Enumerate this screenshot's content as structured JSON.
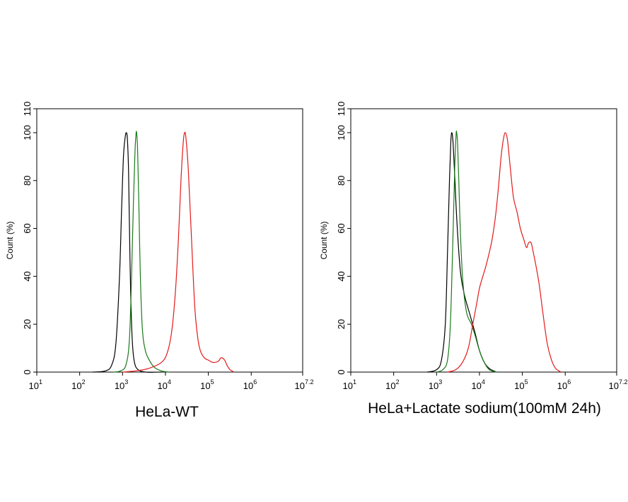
{
  "chart_data": [
    {
      "type": "line",
      "title": "HeLa-WT",
      "xlabel": "",
      "ylabel": "Count  (%)",
      "x_scale": "log10",
      "xlim": [
        10,
        15848931.92
      ],
      "ylim": [
        0,
        110
      ],
      "x_ticks": [
        {
          "base": "10",
          "exp": "1"
        },
        {
          "base": "10",
          "exp": "2"
        },
        {
          "base": "10",
          "exp": "3"
        },
        {
          "base": "10",
          "exp": "4"
        },
        {
          "base": "10",
          "exp": "5"
        },
        {
          "base": "10",
          "exp": "6"
        },
        {
          "base": "10",
          "exp": "7.2"
        }
      ],
      "y_ticks": [
        "0",
        "20",
        "40",
        "60",
        "80",
        "100",
        "110"
      ],
      "grid": false,
      "series": [
        {
          "color": "#000000",
          "points": [
            [
              200,
              0
            ],
            [
              400,
              0.5
            ],
            [
              560,
              3
            ],
            [
              700,
              12
            ],
            [
              850,
              40
            ],
            [
              950,
              68
            ],
            [
              1050,
              90
            ],
            [
              1150,
              98
            ],
            [
              1230,
              100
            ],
            [
              1300,
              97
            ],
            [
              1380,
              84
            ],
            [
              1450,
              60
            ],
            [
              1550,
              32
            ],
            [
              1700,
              12
            ],
            [
              1900,
              4
            ],
            [
              2300,
              1
            ],
            [
              3500,
              0
            ],
            [
              8000,
              0
            ]
          ]
        },
        {
          "color": "#1a7a1a",
          "points": [
            [
              600,
              0
            ],
            [
              900,
              0.5
            ],
            [
              1200,
              3
            ],
            [
              1450,
              14
            ],
            [
              1650,
              45
            ],
            [
              1800,
              72
            ],
            [
              1950,
              92
            ],
            [
              2050,
              99
            ],
            [
              2130,
              100
            ],
            [
              2250,
              92
            ],
            [
              2400,
              70
            ],
            [
              2600,
              40
            ],
            [
              2900,
              18
            ],
            [
              3400,
              9
            ],
            [
              4200,
              5
            ],
            [
              5500,
              2
            ],
            [
              8000,
              0.5
            ],
            [
              12000,
              0
            ]
          ]
        },
        {
          "color": "#e41a1a",
          "points": [
            [
              1000,
              0
            ],
            [
              2000,
              0.5
            ],
            [
              4000,
              1.5
            ],
            [
              8000,
              4
            ],
            [
              11000,
              8
            ],
            [
              14000,
              17
            ],
            [
              17000,
              33
            ],
            [
              20000,
              55
            ],
            [
              23000,
              80
            ],
            [
              26000,
              96
            ],
            [
              28000,
              100
            ],
            [
              30000,
              98
            ],
            [
              34000,
              85
            ],
            [
              40000,
              58
            ],
            [
              48000,
              28
            ],
            [
              56000,
              15
            ],
            [
              65000,
              9
            ],
            [
              80000,
              6
            ],
            [
              100000,
              5
            ],
            [
              130000,
              4
            ],
            [
              170000,
              4.5
            ],
            [
              200000,
              6
            ],
            [
              240000,
              5
            ],
            [
              270000,
              3
            ],
            [
              320000,
              1
            ],
            [
              400000,
              0
            ]
          ]
        }
      ]
    },
    {
      "type": "line",
      "title": "HeLa+Lactate sodium(100mM 24h)",
      "xlabel": "",
      "ylabel": "Count  (%)",
      "x_scale": "log10",
      "xlim": [
        10,
        15848931.92
      ],
      "ylim": [
        0,
        110
      ],
      "x_ticks": [
        {
          "base": "10",
          "exp": "1"
        },
        {
          "base": "10",
          "exp": "2"
        },
        {
          "base": "10",
          "exp": "3"
        },
        {
          "base": "10",
          "exp": "4"
        },
        {
          "base": "10",
          "exp": "5"
        },
        {
          "base": "10",
          "exp": "6"
        },
        {
          "base": "10",
          "exp": "7.2"
        }
      ],
      "y_ticks": [
        "0",
        "20",
        "40",
        "60",
        "80",
        "100",
        "110"
      ],
      "grid": false,
      "series": [
        {
          "color": "#000000",
          "points": [
            [
              600,
              0
            ],
            [
              1000,
              1
            ],
            [
              1300,
              5
            ],
            [
              1600,
              20
            ],
            [
              1800,
              50
            ],
            [
              2000,
              80
            ],
            [
              2150,
              96
            ],
            [
              2250,
              100
            ],
            [
              2400,
              97
            ],
            [
              2600,
              85
            ],
            [
              3000,
              62
            ],
            [
              3600,
              42
            ],
            [
              4500,
              32
            ],
            [
              6000,
              24
            ],
            [
              8000,
              16
            ],
            [
              10000,
              9
            ],
            [
              13000,
              4
            ],
            [
              17000,
              1.5
            ],
            [
              25000,
              0
            ]
          ]
        },
        {
          "color": "#1a7a1a",
          "points": [
            [
              1000,
              0
            ],
            [
              1400,
              1
            ],
            [
              1800,
              5
            ],
            [
              2100,
              20
            ],
            [
              2400,
              55
            ],
            [
              2650,
              85
            ],
            [
              2850,
              99
            ],
            [
              2950,
              100
            ],
            [
              3100,
              95
            ],
            [
              3300,
              80
            ],
            [
              3600,
              58
            ],
            [
              4100,
              38
            ],
            [
              5000,
              25
            ],
            [
              6500,
              20
            ],
            [
              8000,
              15
            ],
            [
              10000,
              9
            ],
            [
              13000,
              4
            ],
            [
              17000,
              1
            ],
            [
              25000,
              0
            ]
          ]
        },
        {
          "color": "#e41a1a",
          "points": [
            [
              1800,
              0
            ],
            [
              2800,
              1
            ],
            [
              4000,
              4
            ],
            [
              5500,
              10
            ],
            [
              7000,
              20
            ],
            [
              8500,
              28
            ],
            [
              10000,
              35
            ],
            [
              12000,
              40
            ],
            [
              14000,
              44
            ],
            [
              17000,
              50
            ],
            [
              20000,
              56
            ],
            [
              24000,
              66
            ],
            [
              28000,
              78
            ],
            [
              32000,
              90
            ],
            [
              36000,
              97
            ],
            [
              40000,
              100
            ],
            [
              45000,
              97
            ],
            [
              52000,
              86
            ],
            [
              62000,
              73
            ],
            [
              75000,
              67
            ],
            [
              90000,
              60
            ],
            [
              110000,
              55
            ],
            [
              125000,
              52
            ],
            [
              140000,
              54
            ],
            [
              160000,
              54
            ],
            [
              180000,
              50
            ],
            [
              210000,
              44
            ],
            [
              250000,
              36
            ],
            [
              300000,
              25
            ],
            [
              380000,
              12
            ],
            [
              480000,
              5
            ],
            [
              600000,
              1.5
            ],
            [
              800000,
              0
            ]
          ]
        }
      ]
    }
  ]
}
